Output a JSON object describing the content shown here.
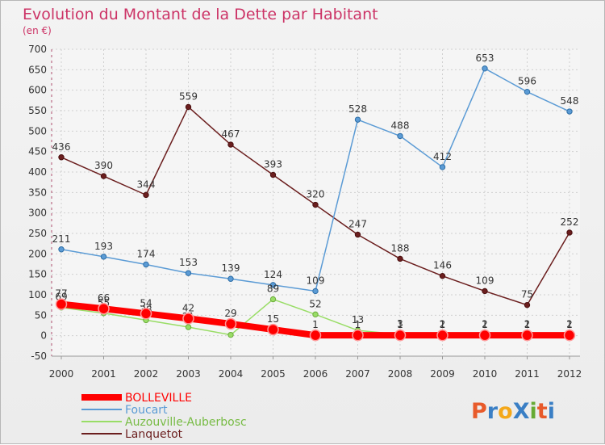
{
  "chart_data": {
    "type": "line",
    "title": "Evolution du Montant de la Dette par Habitant",
    "subtitle": "(en €)",
    "x": [
      "2000",
      "2001",
      "2002",
      "2003",
      "2004",
      "2005",
      "2006",
      "2007",
      "2008",
      "2009",
      "2010",
      "2011",
      "2012"
    ],
    "ylim": [
      -50,
      700
    ],
    "yticks": [
      -50,
      0,
      50,
      100,
      150,
      200,
      250,
      300,
      350,
      400,
      450,
      500,
      550,
      600,
      650,
      700
    ],
    "grid": true,
    "legend_position": "bottom-left",
    "series": [
      {
        "name": "BOLLEVILLE",
        "color": "#ff0000",
        "values": [
          77,
          66,
          54,
          42,
          29,
          15,
          1,
          1,
          1,
          1,
          1,
          1,
          1
        ],
        "labels": [
          "77",
          "66",
          "54",
          "42",
          "29",
          "15",
          "1",
          "1",
          "1",
          "1",
          "1",
          "1",
          "1"
        ]
      },
      {
        "name": "Foucart",
        "color": "#5b9bd5",
        "values": [
          211,
          193,
          174,
          153,
          139,
          124,
          109,
          528,
          488,
          412,
          653,
          596,
          548
        ],
        "labels": [
          "211",
          "193",
          "174",
          "153",
          "139",
          "124",
          "109",
          "528",
          "488",
          "412",
          "653",
          "596",
          "548"
        ]
      },
      {
        "name": "Auzouville-Auberbosc",
        "color": "#99dd66",
        "values": [
          69,
          55,
          38,
          21,
          2,
          89,
          52,
          13,
          3,
          2,
          2,
          2,
          2
        ],
        "labels": [
          "69",
          "55",
          "38",
          "21",
          "2",
          "89",
          "52",
          "13",
          "3",
          "2",
          "2",
          "2",
          "2"
        ]
      },
      {
        "name": "Lanquetot",
        "color": "#6b1e1e",
        "values": [
          436,
          390,
          344,
          559,
          467,
          393,
          320,
          247,
          188,
          146,
          109,
          75,
          252
        ],
        "labels": [
          "436",
          "390",
          "344",
          "559",
          "467",
          "393",
          "320",
          "247",
          "188",
          "146",
          "109",
          "75",
          "252"
        ]
      }
    ]
  },
  "logo": {
    "text": "ProXiti",
    "letters": [
      "P",
      "r",
      "o",
      "X",
      "i",
      "t",
      "i"
    ],
    "colors": [
      "#e85a2a",
      "#3a7fc5",
      "#f4a81a",
      "#3a7fc5",
      "#66aa33",
      "#e85a2a",
      "#3a7fc5"
    ]
  }
}
